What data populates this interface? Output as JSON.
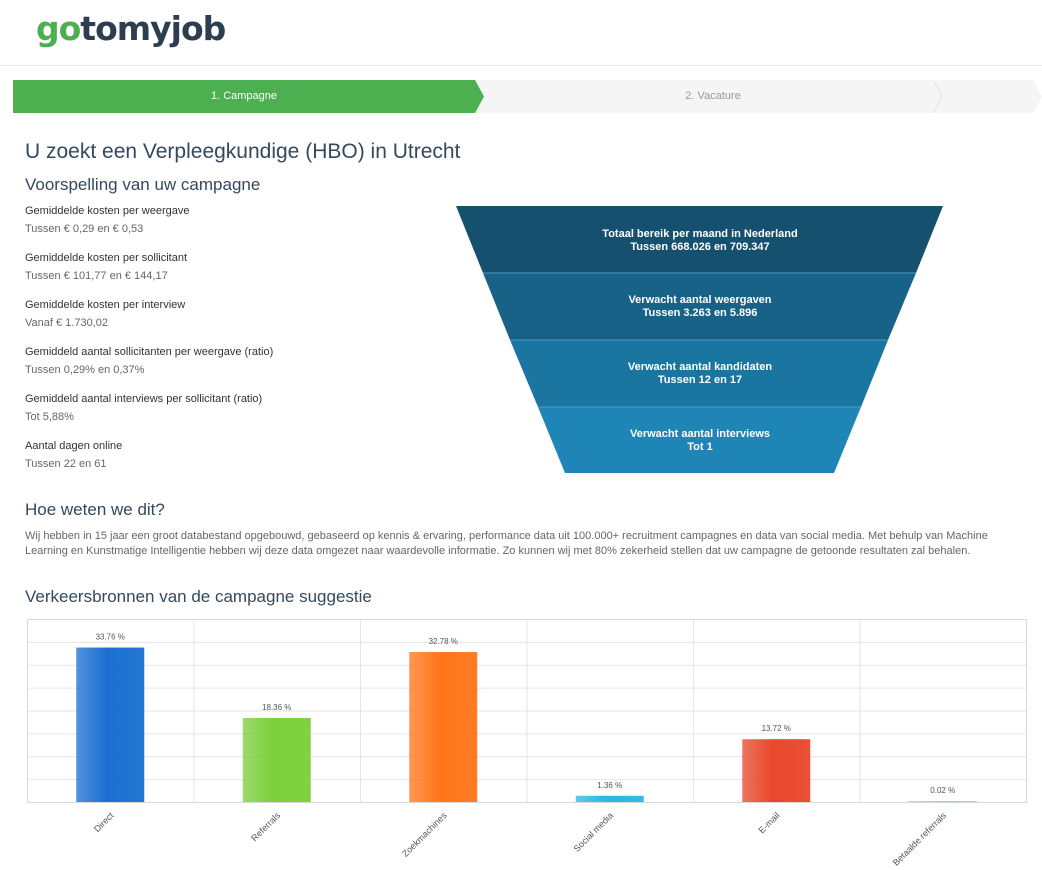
{
  "header": {
    "logo_go": "go",
    "logo_rest": "tomyjob"
  },
  "steps": [
    {
      "label": "1. Campagne",
      "active": true
    },
    {
      "label": "2. Vacature",
      "active": false
    }
  ],
  "title": "U zoekt een Verpleegkundige (HBO) in Utrecht",
  "forecast": {
    "heading": "Voorspelling van uw campagne",
    "stats": [
      {
        "label": "Gemiddelde kosten per weergave",
        "value": "Tussen € 0,29 en € 0,53"
      },
      {
        "label": "Gemiddelde kosten per sollicitant",
        "value": "Tussen € 101,77 en € 144,17"
      },
      {
        "label": "Gemiddelde kosten per interview",
        "value": "Vanaf € 1.730,02"
      },
      {
        "label": "Gemiddeld aantal sollicitanten per weergave (ratio)",
        "value": "Tussen 0,29% en 0,37%"
      },
      {
        "label": "Gemiddeld aantal interviews per sollicitant (ratio)",
        "value": "Tot 5,88%"
      },
      {
        "label": "Aantal dagen online",
        "value": "Tussen 22 en 61"
      }
    ],
    "funnel": [
      {
        "line1": "Totaal bereik per maand in Nederland",
        "line2": "Tussen 668.026 en 709.347",
        "color": "#15506f"
      },
      {
        "line1": "Verwacht aantal weergaven",
        "line2": "Tussen 3.263 en 5.896",
        "color": "#176286"
      },
      {
        "line1": "Verwacht aantal kandidaten",
        "line2": "Tussen 12 en 17",
        "color": "#1a76a1"
      },
      {
        "line1": "Verwacht aantal interviews",
        "line2": "Tot 1",
        "color": "#1f85b6"
      }
    ]
  },
  "about": {
    "heading": "Hoe weten we dit?",
    "text": "Wij hebben in 15 jaar een groot databestand opgebouwd, gebaseerd op kennis & ervaring, performance data uit 100.000+ recruitment campagnes en data van social media. Met behulp van Machine Learning en Kunstmatige Intelligentie hebben wij deze data omgezet naar waardevolle informatie. Zo kunnen wij met 80% zekerheid stellen dat uw campagne de getoonde resultaten zal behalen."
  },
  "traffic": {
    "heading": "Verkeersbronnen van de campagne suggestie"
  },
  "chart_data": {
    "type": "bar",
    "categories": [
      "Direct",
      "Referrals",
      "Zoekmachines",
      "Social media",
      "E-mail",
      "Betaalde referrals"
    ],
    "values": [
      33.76,
      18.36,
      32.78,
      1.36,
      13.72,
      0.02
    ],
    "data_labels": [
      "33.76 %",
      "18.36 %",
      "32.78 %",
      "1.36 %",
      "13.72 %",
      "0.02 %"
    ],
    "colors": [
      "#1a6fd1",
      "#7ccf3a",
      "#ff7519",
      "#2bb5e8",
      "#e8472a",
      "#9dcbe8"
    ],
    "ylim": [
      0,
      40
    ],
    "grid": true
  }
}
